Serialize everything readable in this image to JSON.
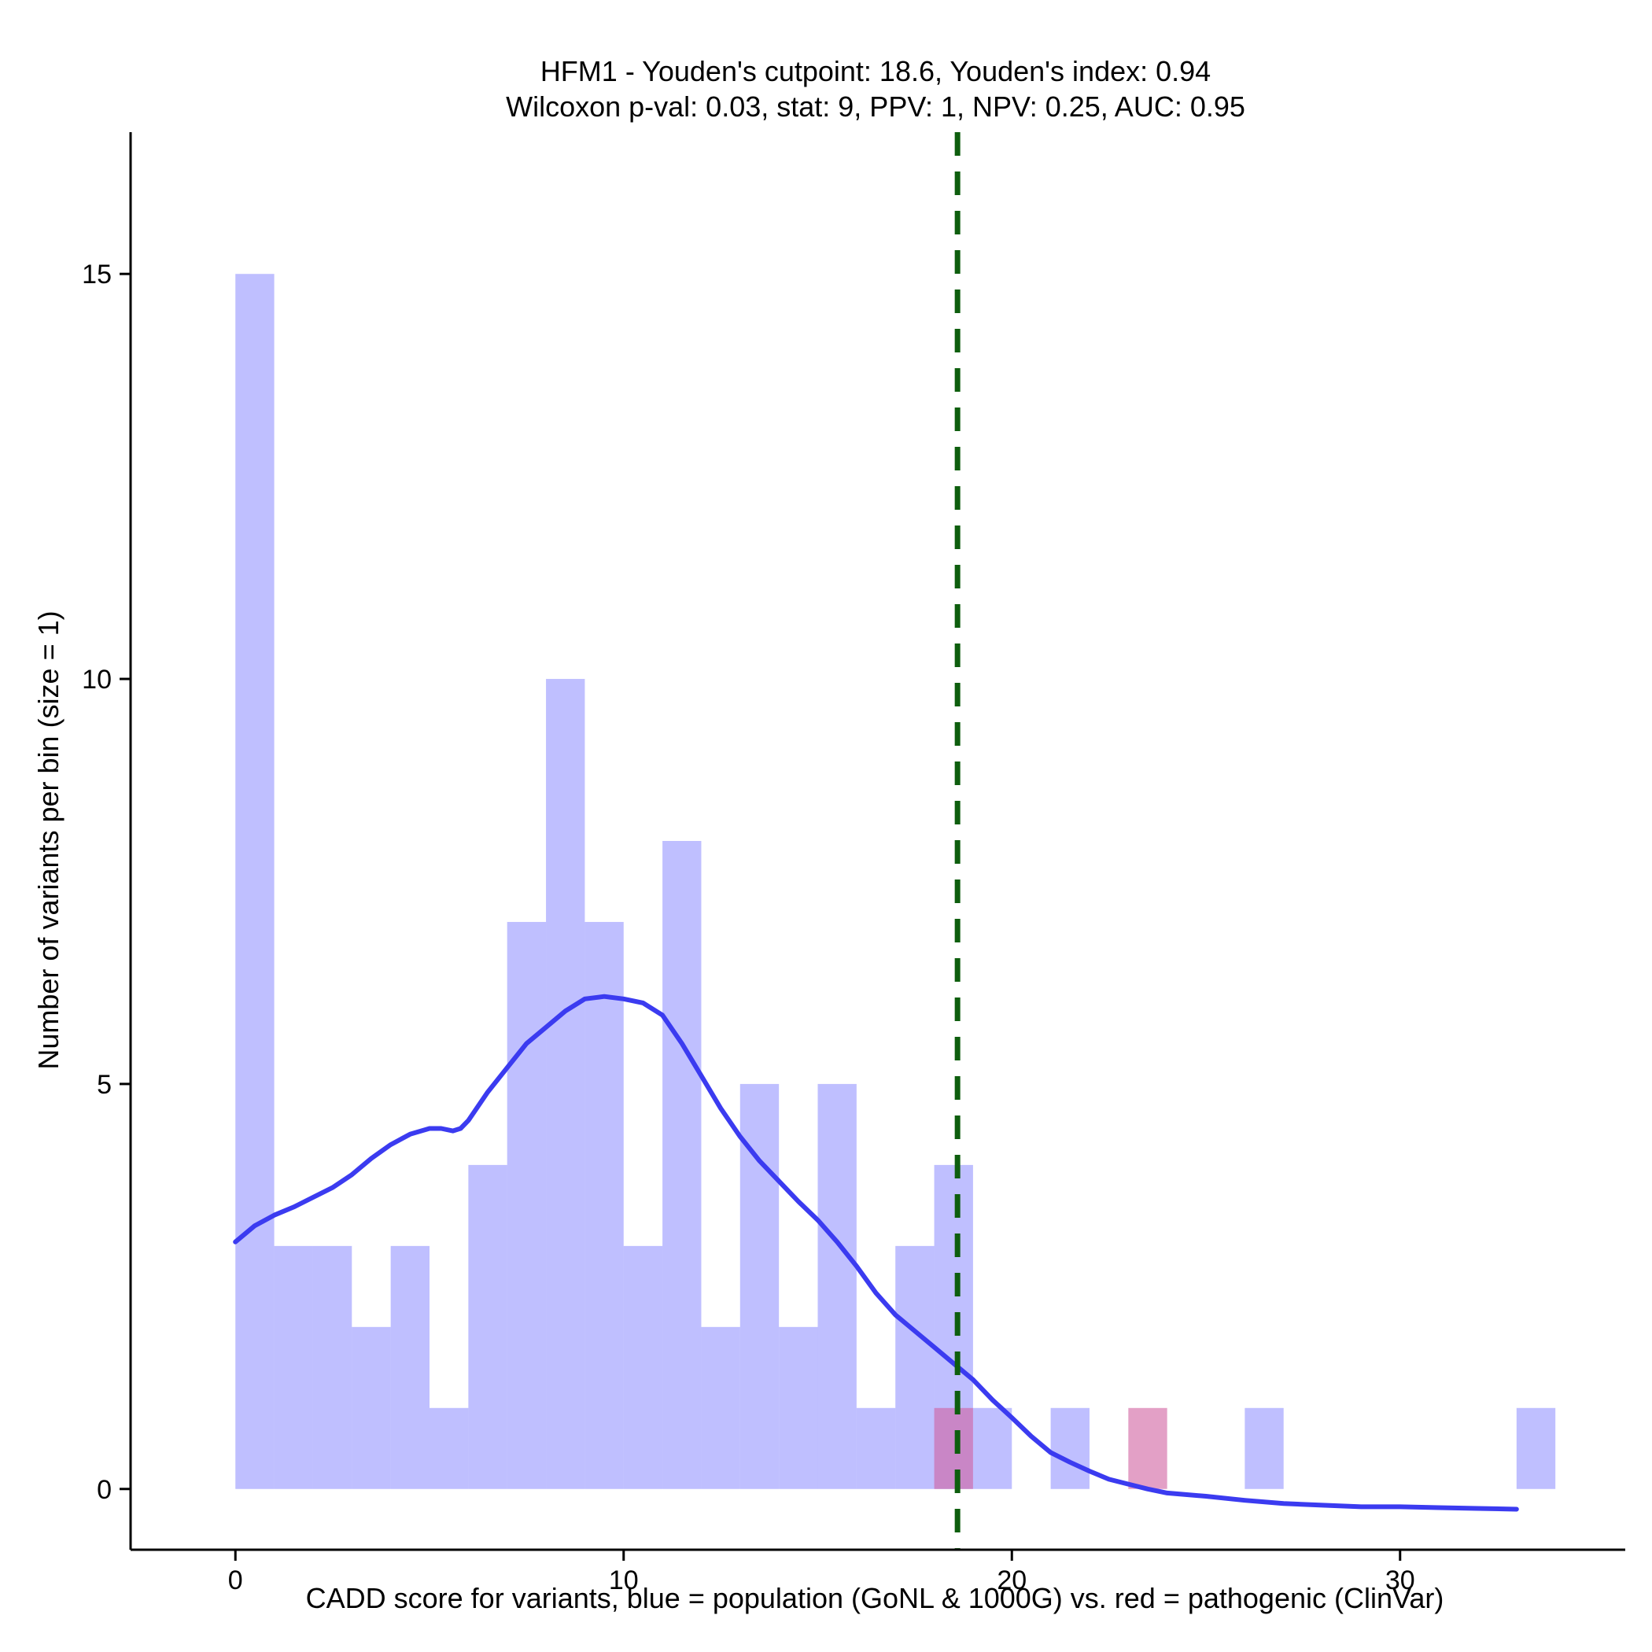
{
  "chart_data": {
    "type": "bar",
    "title_line1": "HFM1 - Youden's cutpoint: 18.6, Youden's index: 0.94",
    "title_line2": "Wilcoxon p-val: 0.03, stat: 9, PPV: 1, NPV: 0.25, AUC: 0.95",
    "xlabel": "CADD score for variants, blue = population (GoNL & 1000G) vs. red = pathogenic (ClinVar)",
    "ylabel": "Number of variants per bin (size = 1)",
    "xlim": [
      -2.7,
      35.8
    ],
    "ylim": [
      -0.75,
      16.75
    ],
    "xticks": [
      0,
      10,
      20,
      30
    ],
    "yticks": [
      0,
      5,
      10,
      15
    ],
    "bin_width": 1,
    "series": [
      {
        "name": "population (GoNL & 1000G)",
        "color": "#8080ff",
        "opacity": 0.5,
        "bin_starts": [
          0,
          1,
          2,
          3,
          4,
          5,
          6,
          7,
          8,
          9,
          10,
          11,
          12,
          13,
          14,
          15,
          16,
          17,
          18,
          19,
          21,
          26,
          33
        ],
        "counts": [
          15,
          3,
          3,
          2,
          3,
          1,
          4,
          7,
          10,
          7,
          3,
          8,
          2,
          5,
          2,
          5,
          1,
          3,
          4,
          1,
          1,
          1,
          1
        ]
      },
      {
        "name": "pathogenic (ClinVar)",
        "color": "#d060a0",
        "opacity": 0.6,
        "bin_starts": [
          18,
          23
        ],
        "counts": [
          1,
          1
        ]
      }
    ],
    "density_curve": {
      "color": "#3b3bf0",
      "x": [
        0,
        0.5,
        1,
        1.5,
        2,
        2.5,
        3,
        3.5,
        4,
        4.5,
        5,
        5.3,
        5.6,
        5.8,
        6,
        6.5,
        7,
        7.5,
        8,
        8.5,
        9,
        9.5,
        10,
        10.5,
        11,
        11.5,
        12,
        12.5,
        13,
        13.5,
        14,
        14.5,
        15,
        15.5,
        16,
        16.5,
        17,
        17.5,
        18,
        18.5,
        19,
        19.5,
        20,
        20.5,
        21,
        21.5,
        22,
        22.5,
        23,
        23.5,
        24,
        25,
        26,
        27,
        28,
        29,
        30,
        31,
        32,
        33
      ],
      "y": [
        3.05,
        3.25,
        3.38,
        3.48,
        3.6,
        3.72,
        3.88,
        4.08,
        4.25,
        4.38,
        4.45,
        4.45,
        4.42,
        4.45,
        4.55,
        4.9,
        5.2,
        5.5,
        5.7,
        5.9,
        6.05,
        6.08,
        6.05,
        6.0,
        5.85,
        5.5,
        5.1,
        4.7,
        4.35,
        4.05,
        3.8,
        3.55,
        3.32,
        3.05,
        2.75,
        2.42,
        2.15,
        1.95,
        1.75,
        1.55,
        1.35,
        1.1,
        0.88,
        0.65,
        0.45,
        0.33,
        0.22,
        0.12,
        0.06,
        0.0,
        -0.05,
        -0.09,
        -0.14,
        -0.18,
        -0.2,
        -0.22,
        -0.22,
        -0.23,
        -0.24,
        -0.25
      ]
    },
    "cutpoint": {
      "value": 18.6,
      "color": "#0e5e0e"
    },
    "grid": false
  }
}
